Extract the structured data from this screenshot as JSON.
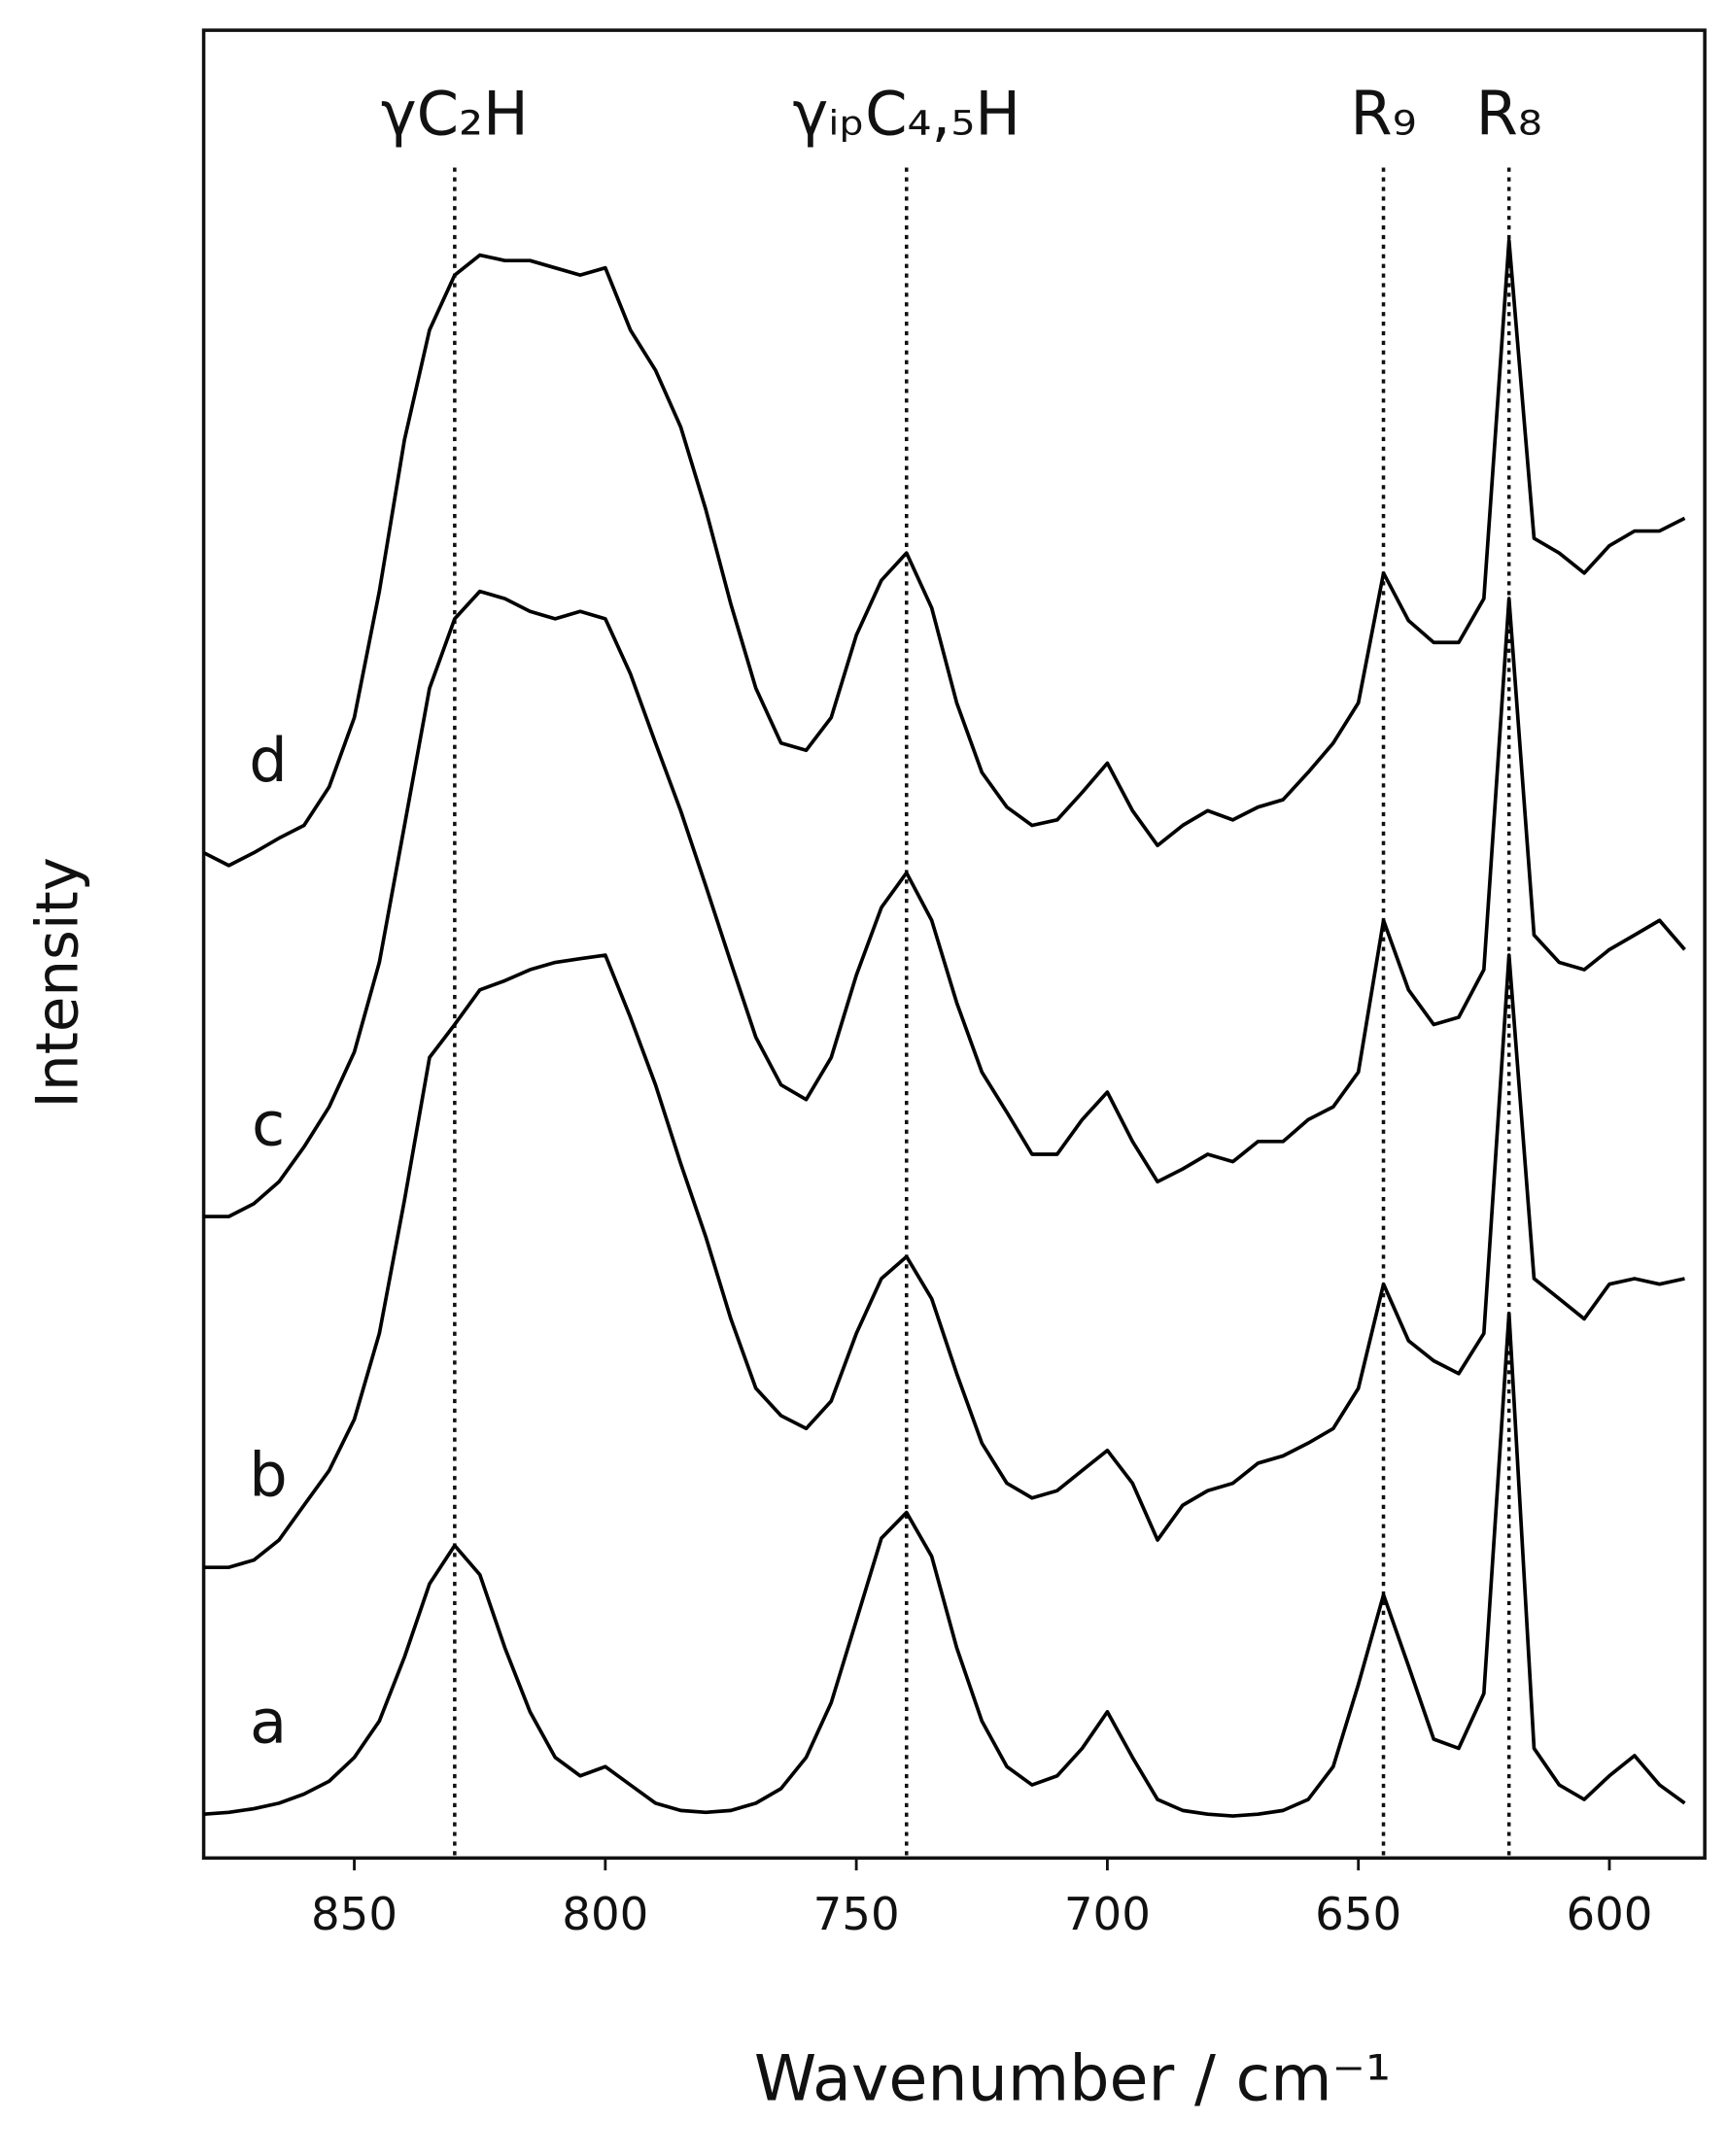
{
  "chart_data": {
    "type": "line",
    "x_label": "Wavenumber / cm⁻¹",
    "y_label": "Intensity",
    "xlim": [
      880,
      581
    ],
    "ylim": [
      0,
      100
    ],
    "xticks": [
      850,
      800,
      750,
      700,
      650,
      600
    ],
    "x": [
      880,
      875,
      870,
      865,
      860,
      855,
      850,
      845,
      840,
      835,
      830,
      825,
      820,
      815,
      810,
      805,
      800,
      795,
      790,
      785,
      780,
      775,
      770,
      765,
      760,
      755,
      750,
      745,
      740,
      735,
      730,
      725,
      720,
      715,
      710,
      705,
      700,
      695,
      690,
      685,
      680,
      675,
      670,
      665,
      660,
      655,
      650,
      645,
      640,
      635,
      630,
      625,
      620,
      615,
      610,
      605,
      600,
      595,
      590,
      585
    ],
    "series": [
      {
        "name": "a",
        "color": "#000000",
        "values": [
          2.4,
          2.5,
          2.7,
          3.0,
          3.5,
          4.2,
          5.5,
          7.5,
          11,
          15,
          17.1,
          15.5,
          11.5,
          8,
          5.5,
          4.5,
          5.0,
          4.0,
          3.0,
          2.6,
          2.5,
          2.6,
          3.0,
          3.8,
          5.5,
          8.5,
          13,
          17.5,
          18.9,
          16.5,
          11.5,
          7.5,
          5.0,
          4.0,
          4.5,
          6.0,
          8.0,
          5.5,
          3.2,
          2.6,
          2.4,
          2.3,
          2.4,
          2.6,
          3.2,
          5.0,
          9.5,
          14.4,
          10.5,
          6.5,
          6.0,
          9,
          29.8,
          6,
          4.0,
          3.2,
          4.5,
          5.6,
          4.0,
          3.0
        ]
      },
      {
        "name": "b",
        "color": "#000000",
        "values": [
          15.9,
          15.9,
          16.3,
          17.4,
          19.3,
          21.2,
          24,
          28.7,
          36,
          43.8,
          45.6,
          47.5,
          48,
          48.6,
          49,
          49.2,
          49.4,
          46,
          42.3,
          38,
          34,
          29.5,
          25.7,
          24.2,
          23.5,
          25,
          28.7,
          31.7,
          32.9,
          30.6,
          26.5,
          22.7,
          20.5,
          19.7,
          20.1,
          21.2,
          22.3,
          20.5,
          17.4,
          19.3,
          20.1,
          20.5,
          21.6,
          22,
          22.7,
          23.5,
          25.7,
          31.4,
          28.3,
          27.2,
          26.5,
          28.7,
          49.4,
          31.7,
          30.6,
          29.5,
          31.4,
          31.7,
          31.4,
          31.7
        ]
      },
      {
        "name": "c",
        "color": "#000000",
        "values": [
          35.1,
          35.1,
          35.8,
          37,
          38.9,
          41.1,
          44.1,
          49,
          56.5,
          64,
          67.8,
          69.3,
          68.9,
          68.2,
          67.8,
          68.2,
          67.8,
          64.8,
          61,
          57.3,
          53.2,
          49,
          44.9,
          42.3,
          41.5,
          43.8,
          48.3,
          52,
          53.9,
          51.3,
          46.8,
          43,
          40.8,
          38.5,
          38.5,
          40.4,
          41.9,
          39.2,
          37,
          37.7,
          38.5,
          38.1,
          39.2,
          39.2,
          40.4,
          41.1,
          43,
          51.3,
          47.5,
          45.6,
          46,
          48.6,
          68.9,
          50.5,
          49,
          48.6,
          49.7,
          50.5,
          51.3,
          49.7
        ]
      },
      {
        "name": "d",
        "color": "#000000",
        "values": [
          55,
          54.3,
          55,
          55.8,
          56.5,
          58.6,
          62.4,
          69.3,
          77.6,
          83.6,
          86.6,
          87.7,
          87.4,
          87.4,
          87,
          86.6,
          87,
          83.6,
          81.4,
          78.3,
          73.8,
          68.6,
          64,
          61,
          60.6,
          62.4,
          66.9,
          69.9,
          71.4,
          68.4,
          63.2,
          59.4,
          57.5,
          56.5,
          56.8,
          58.3,
          59.9,
          57.3,
          55.4,
          56.5,
          57.3,
          56.8,
          57.5,
          57.9,
          59.4,
          61,
          63.2,
          70.3,
          67.7,
          66.5,
          66.5,
          68.9,
          88.5,
          72.2,
          71.4,
          70.3,
          71.8,
          72.6,
          72.6,
          73.3
        ]
      }
    ],
    "annotations": [
      {
        "text": "γC₂H",
        "x": 830
      },
      {
        "text": "γᵢₚC₄,₅H",
        "x": 740
      },
      {
        "text": "R₉",
        "x": 645
      },
      {
        "text": "R₈",
        "x": 620
      }
    ]
  }
}
